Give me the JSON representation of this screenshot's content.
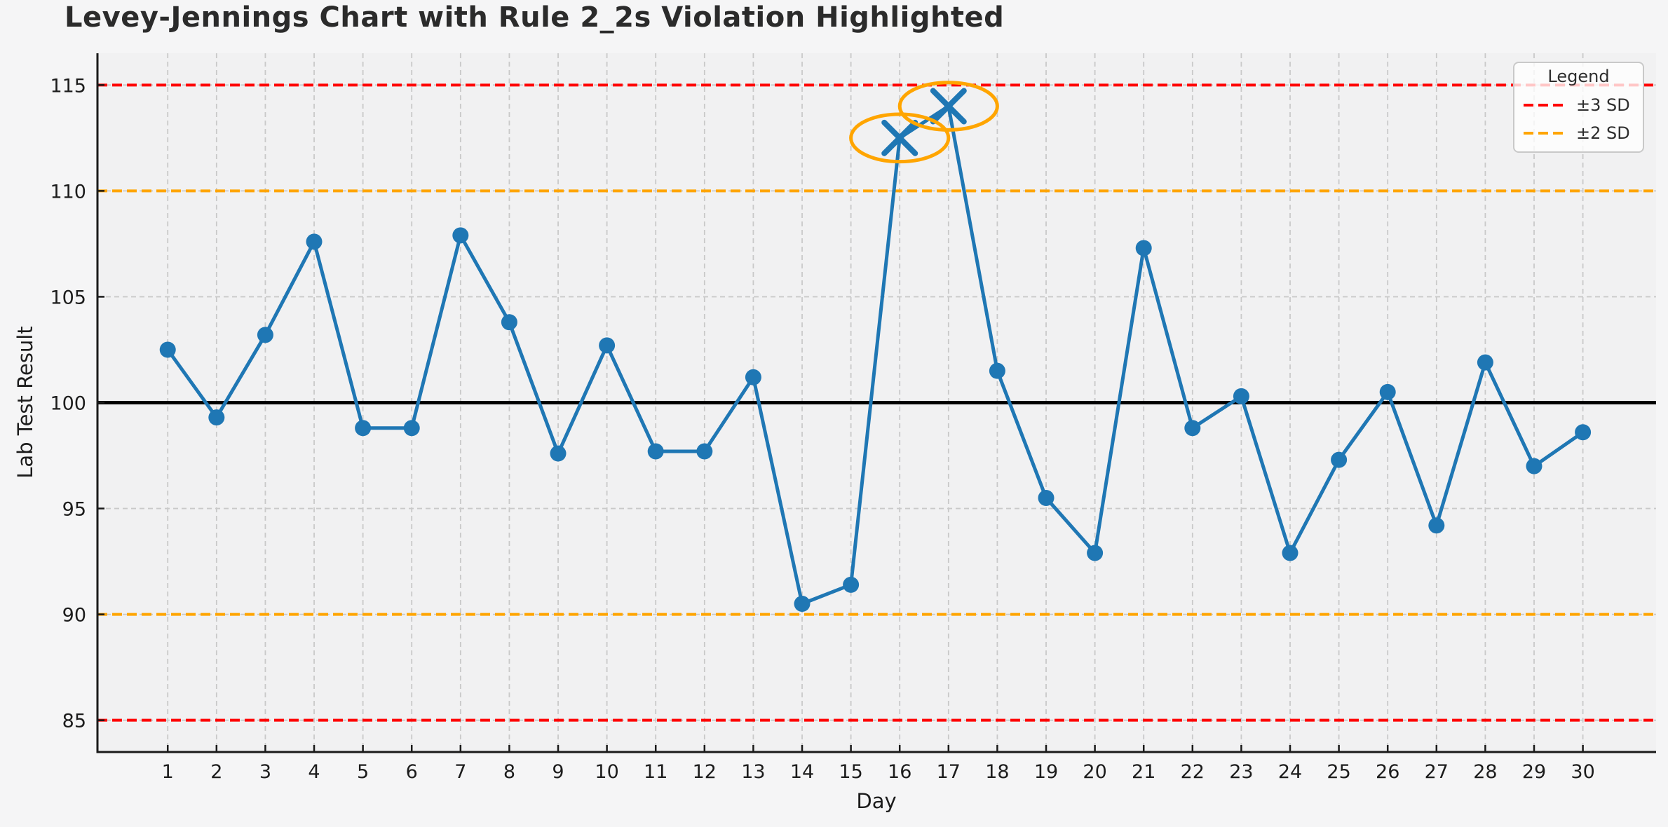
{
  "chart_data": {
    "type": "line",
    "title": "Levey-Jennings Chart with Rule 2_2s Violation Highlighted",
    "xlabel": "Day",
    "ylabel": "Lab Test Result",
    "x": [
      1,
      2,
      3,
      4,
      5,
      6,
      7,
      8,
      9,
      10,
      11,
      12,
      13,
      14,
      15,
      16,
      17,
      18,
      19,
      20,
      21,
      22,
      23,
      24,
      25,
      26,
      27,
      28,
      29,
      30
    ],
    "y": [
      102.5,
      99.3,
      103.2,
      107.6,
      98.8,
      98.8,
      107.9,
      103.8,
      97.6,
      102.7,
      97.7,
      97.7,
      101.2,
      90.5,
      91.4,
      112.5,
      114.0,
      101.5,
      95.5,
      92.9,
      107.3,
      98.8,
      100.3,
      92.9,
      97.3,
      100.5,
      94.2,
      101.9,
      97.0,
      98.6
    ],
    "series_color": "#1f77b4",
    "mean_line": {
      "value": 100,
      "color": "#000000",
      "style": "solid"
    },
    "control_lines": [
      {
        "label": "+3 SD",
        "value": 115,
        "color": "#ff0000",
        "style": "dashed"
      },
      {
        "label": "+2 SD",
        "value": 110,
        "color": "#ffa500",
        "style": "dashed"
      },
      {
        "label": "-2 SD",
        "value": 90,
        "color": "#ffa500",
        "style": "dashed"
      },
      {
        "label": "-3 SD",
        "value": 85,
        "color": "#ff0000",
        "style": "dashed"
      }
    ],
    "violations": {
      "rule": "2_2s",
      "days": [
        16,
        17
      ],
      "values": [
        112.5,
        114.0
      ],
      "marker": "x",
      "ellipse": {
        "rx_days": 1.0,
        "ry_units": 1.12,
        "color": "#ffa500"
      }
    },
    "ylim": [
      83.5,
      116.5
    ],
    "yticks": [
      85,
      90,
      95,
      100,
      105,
      110,
      115
    ],
    "xlim": [
      -0.44,
      31.5
    ],
    "xticks": [
      1,
      2,
      3,
      4,
      5,
      6,
      7,
      8,
      9,
      10,
      11,
      12,
      13,
      14,
      15,
      16,
      17,
      18,
      19,
      20,
      21,
      22,
      23,
      24,
      25,
      26,
      27,
      28,
      29,
      30
    ],
    "grid": true,
    "background": {
      "figure": "#f5f5f6",
      "axes": "#f1f1f2",
      "gridline": "#c9c9c9"
    },
    "legend": {
      "title": "Legend",
      "position": "upper right",
      "entries": [
        {
          "label": "±3 SD",
          "color": "#ff0000"
        },
        {
          "label": "±2 SD",
          "color": "#ffa500"
        }
      ]
    }
  }
}
